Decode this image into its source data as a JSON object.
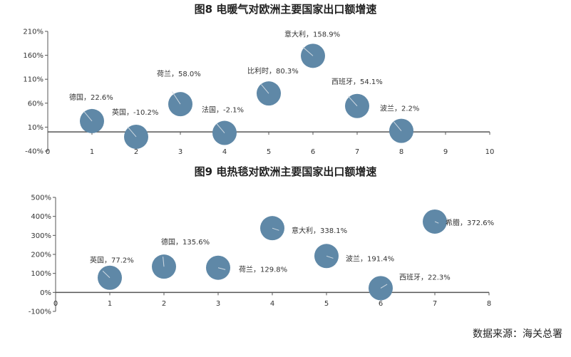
{
  "chart_data": [
    {
      "type": "scatter",
      "title": "图8 电暖气对欧洲主要国家出口额增速",
      "x_ticks": [
        "0",
        "1",
        "2",
        "3",
        "4",
        "5",
        "6",
        "7",
        "8",
        "9",
        "10"
      ],
      "y_ticks": [
        "210%",
        "160%",
        "110%",
        "60%",
        "10%",
        "-40%"
      ],
      "xlim": [
        0,
        10
      ],
      "ylim": [
        -40,
        210
      ],
      "points": [
        {
          "x": 1,
          "y": 22.6,
          "label": "德国，22.6%"
        },
        {
          "x": 2,
          "y": -10.2,
          "label": "英国，-10.2%"
        },
        {
          "x": 3,
          "y": 58.0,
          "label": "荷兰，58.0%"
        },
        {
          "x": 4,
          "y": -2.1,
          "label": "法国，-2.1%"
        },
        {
          "x": 5,
          "y": 80.3,
          "label": "比利时，80.3%"
        },
        {
          "x": 6,
          "y": 158.9,
          "label": "意大利，158.9%"
        },
        {
          "x": 7,
          "y": 54.1,
          "label": "西班牙，54.1%"
        },
        {
          "x": 8,
          "y": 2.2,
          "label": "波兰，2.2%"
        }
      ]
    },
    {
      "type": "scatter",
      "title": "图9 电热毯对欧洲主要国家出口额增速",
      "x_ticks": [
        "0",
        "1",
        "2",
        "3",
        "4",
        "5",
        "6",
        "7",
        "8"
      ],
      "y_ticks": [
        "500%",
        "400%",
        "300%",
        "200%",
        "100%",
        "0%",
        "-100%"
      ],
      "xlim": [
        0,
        8
      ],
      "ylim": [
        -100,
        500
      ],
      "points": [
        {
          "x": 1,
          "y": 77.2,
          "label": "英国，77.2%"
        },
        {
          "x": 2,
          "y": 135.6,
          "label": "德国，135.6%"
        },
        {
          "x": 3,
          "y": 129.8,
          "label": "荷兰，129.8%"
        },
        {
          "x": 4,
          "y": 338.1,
          "label": "意大利，338.1%"
        },
        {
          "x": 5,
          "y": 191.4,
          "label": "波兰，191.4%"
        },
        {
          "x": 6,
          "y": 22.3,
          "label": "西班牙，22.3%"
        },
        {
          "x": 7,
          "y": 372.6,
          "label": "希腊，372.6%"
        }
      ]
    }
  ],
  "source": "数据来源：海关总署",
  "colors": {
    "bubble": "#5f88a7",
    "axis": "#555555"
  }
}
